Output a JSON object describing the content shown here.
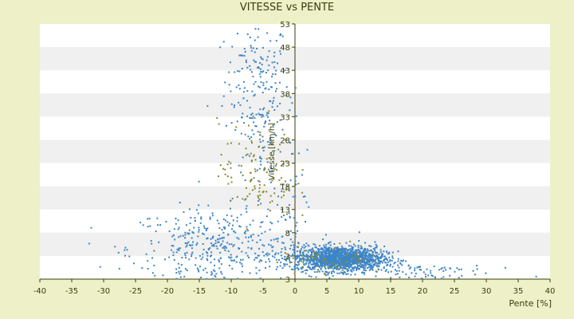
{
  "chart_data": {
    "type": "scatter",
    "title": "VITESSE vs PENTE",
    "xlabel": "Pente [%]",
    "ylabel": "Vitesse [km/h]",
    "xlim": [
      -40,
      40
    ],
    "ylim": [
      3,
      53
    ],
    "x_ticks": [
      "-40",
      "-35",
      "-30",
      "-25",
      "-20",
      "-15",
      "-10",
      "-5",
      "0",
      "5",
      "10",
      "15",
      "20",
      "25",
      "30",
      "35",
      "40"
    ],
    "y_ticks": [
      "3",
      "3",
      "8",
      "13",
      "18",
      "23",
      "28",
      "33",
      "38",
      "43",
      "48",
      "53"
    ],
    "grid": "horizontal bands",
    "colors": {
      "primary_points": "#3d85c6",
      "secondary_points": "#8b8b2a",
      "band_light": "#ffffff",
      "band_dark": "#f0f0f0",
      "axis": "#3a3d0a"
    },
    "series": [
      {
        "color": "#3d85c6",
        "clusters": [
          {
            "x_center": -6,
            "y_center": 42,
            "x_spread": 2.5,
            "y_spread": 6,
            "count": 160
          },
          {
            "x_center": -5,
            "y_center": 30,
            "x_spread": 2.5,
            "y_spread": 6,
            "count": 80
          },
          {
            "x_center": -12,
            "y_center": 9,
            "x_spread": 7,
            "y_spread": 4,
            "count": 420
          },
          {
            "x_center": 7,
            "y_center": 7,
            "x_spread": 3.5,
            "y_spread": 1.2,
            "count": 1500
          },
          {
            "x_center": 18,
            "y_center": 4.5,
            "x_spread": 6,
            "y_spread": 1.0,
            "count": 90
          },
          {
            "x_center": -1,
            "y_center": 16,
            "x_spread": 1.5,
            "y_spread": 6,
            "count": 40
          }
        ]
      },
      {
        "color": "#8b8b2a",
        "clusters": [
          {
            "x_center": -6,
            "y_center": 24,
            "x_spread": 3,
            "y_spread": 5,
            "count": 110
          },
          {
            "x_center": 6,
            "y_center": 7,
            "x_spread": 4,
            "y_spread": 1.5,
            "count": 60
          }
        ]
      }
    ]
  }
}
